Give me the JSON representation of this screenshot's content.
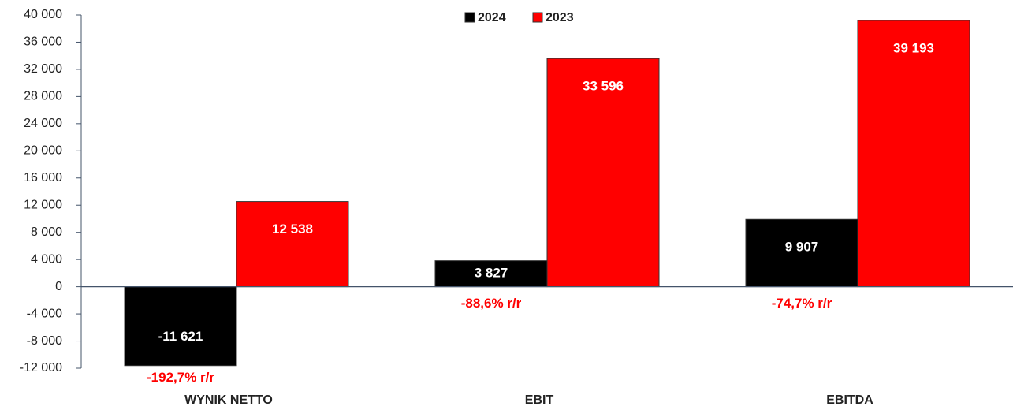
{
  "chart_data": {
    "type": "bar",
    "categories": [
      "WYNIK NETTO",
      "EBIT",
      "EBITDA"
    ],
    "series": [
      {
        "name": "2024",
        "color": "#000000",
        "values": [
          -11621,
          3827,
          9907
        ],
        "value_labels": [
          "-11 621",
          "3 827",
          "9 907"
        ]
      },
      {
        "name": "2023",
        "color": "#ff0000",
        "values": [
          12538,
          33596,
          39193
        ],
        "value_labels": [
          "12 538",
          "33 596",
          "39 193"
        ]
      }
    ],
    "annotations": [
      "-192,7% r/r",
      "-88,6% r/r",
      "-74,7% r/r"
    ],
    "ylim": [
      -12000,
      40000
    ],
    "yticks": [
      {
        "value": -12000,
        "label": "-12 000"
      },
      {
        "value": -8000,
        "label": "-8 000"
      },
      {
        "value": -4000,
        "label": "-4 000"
      },
      0,
      {
        "value": 4000,
        "label": "4 000"
      },
      {
        "value": 8000,
        "label": "8 000"
      },
      {
        "value": 12000,
        "label": "12 000"
      },
      {
        "value": 16000,
        "label": "16 000"
      },
      {
        "value": 20000,
        "label": "20 000"
      },
      {
        "value": 24000,
        "label": "24 000"
      },
      {
        "value": 28000,
        "label": "28 000"
      },
      {
        "value": 32000,
        "label": "32 000"
      },
      {
        "value": 36000,
        "label": "36 000"
      },
      {
        "value": 40000,
        "label": "40 000"
      }
    ],
    "legend": "top",
    "grid": false
  }
}
